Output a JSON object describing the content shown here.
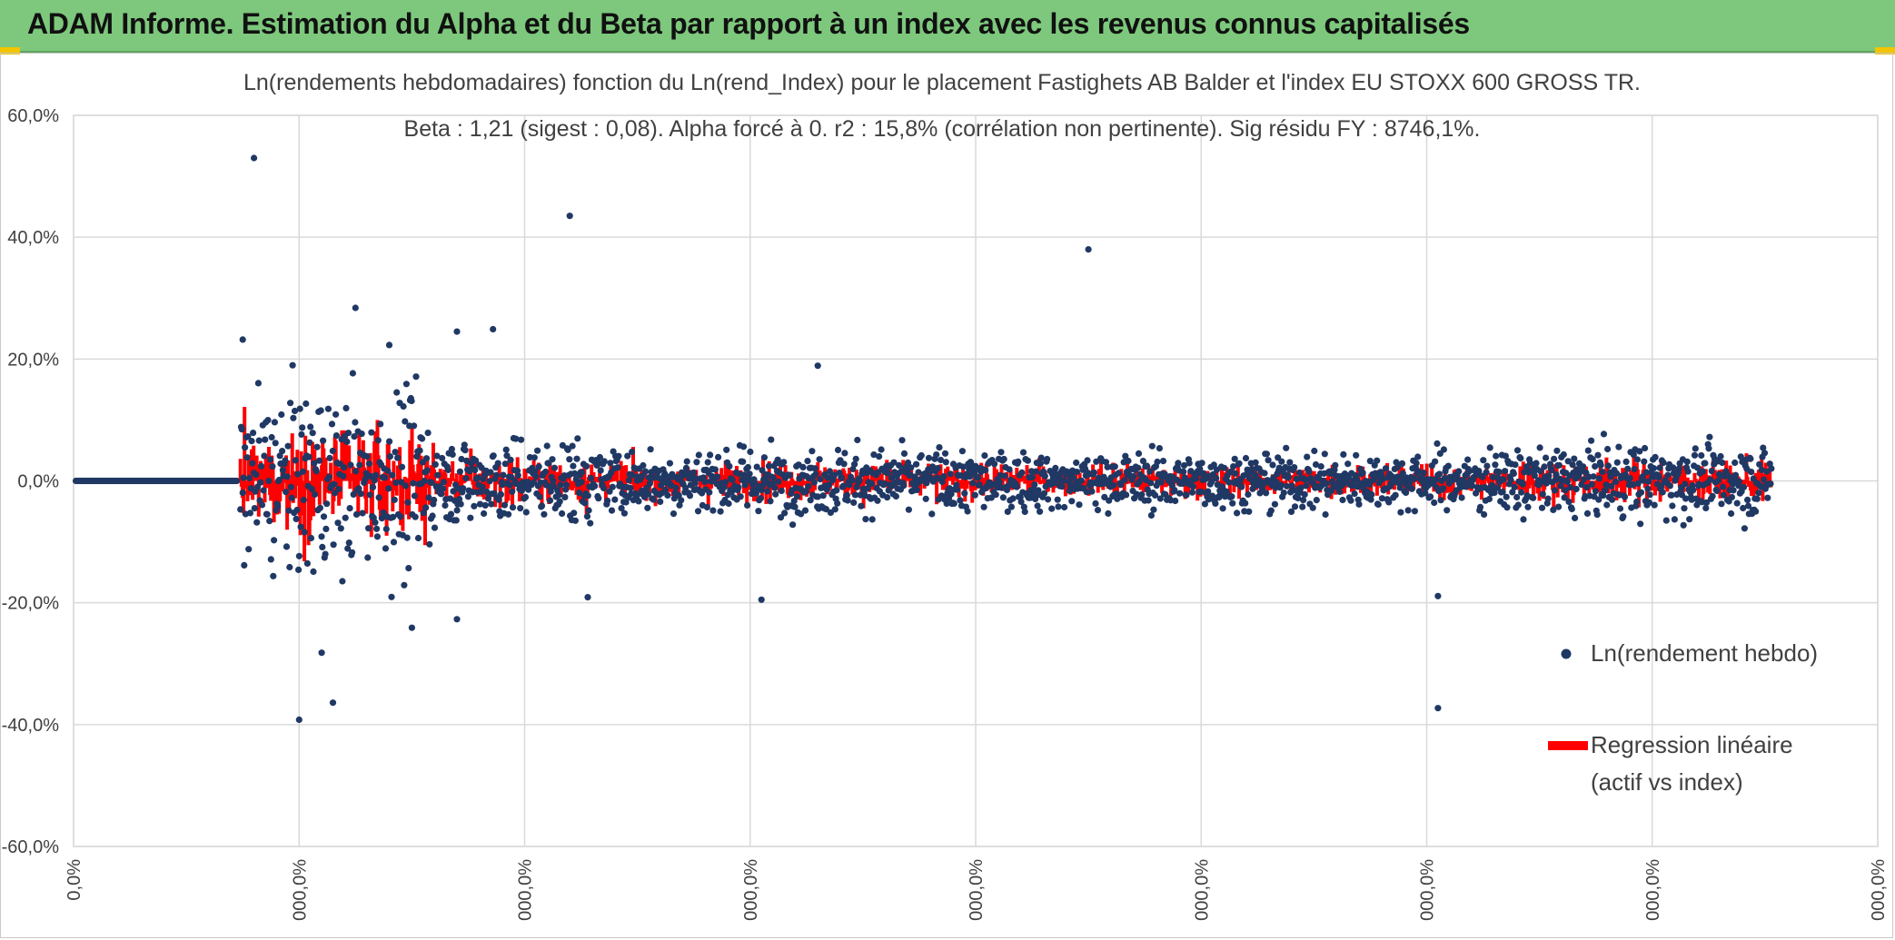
{
  "banner": {
    "title": "ADAM Informe. Estimation du Alpha et du Beta par rapport à un index avec les revenus connus capitalisés",
    "color": "#7dc87c"
  },
  "chart_data": {
    "type": "scatter",
    "title": "Ln(rendements hebdomadaires) fonction du Ln(rend_Index) pour le placement Fastighets AB Balder et l'index EU STOXX 600 GROSS TR.",
    "subtitle": "Beta : 1,21 (sigest : 0,08). Alpha forcé à 0. r2 : 15,8% (corrélation non pertinente). Sig résidu FY : 8746,1%.",
    "xlabel": "",
    "ylabel": "",
    "ylim": [
      -60,
      60
    ],
    "y_ticks": [
      -60,
      -40,
      -20,
      0,
      20,
      40,
      60
    ],
    "y_tick_labels": [
      "-60,0%",
      "-40,0%",
      "-20,0%",
      "0,0%",
      "20,0%",
      "40,0%",
      "60,0%"
    ],
    "x_ticks": [
      0,
      1,
      2,
      3,
      4,
      5,
      6,
      7,
      8
    ],
    "x_tick_labels": [
      "0,0%",
      "000,0%",
      "000,0%",
      "000,0%",
      "000,0%",
      "000,0%",
      "000,0%",
      "000,0%",
      "000,0%"
    ],
    "xlim": [
      0,
      8
    ],
    "grid": true,
    "legend_position": "right",
    "series": [
      {
        "name": "Ln(rendement hebdo)",
        "kind": "points",
        "color": "#203864",
        "notable_points": [
          {
            "x": 0.8,
            "y": 53
          },
          {
            "x": 2.2,
            "y": 43.5
          },
          {
            "x": 4.5,
            "y": 38
          },
          {
            "x": 1.25,
            "y": 28.4
          },
          {
            "x": 0.75,
            "y": 23.2
          },
          {
            "x": 1.4,
            "y": 22.3
          },
          {
            "x": 1.7,
            "y": 24.5
          },
          {
            "x": 1.86,
            "y": 24.9
          },
          {
            "x": 3.3,
            "y": 18.9
          },
          {
            "x": 1.0,
            "y": -39.2
          },
          {
            "x": 1.15,
            "y": -36.4
          },
          {
            "x": 6.05,
            "y": -37.3
          },
          {
            "x": 1.1,
            "y": -28.2
          },
          {
            "x": 1.5,
            "y": -24.1
          },
          {
            "x": 1.7,
            "y": -22.7
          },
          {
            "x": 2.28,
            "y": -19.1
          },
          {
            "x": 3.05,
            "y": -19.5
          },
          {
            "x": 6.05,
            "y": -18.9
          }
        ]
      },
      {
        "name": "Regression linéaire (actif vs index)",
        "kind": "line",
        "color": "#ff0000"
      }
    ],
    "legend": [
      {
        "label": "Ln(rendement hebdo)",
        "marker": "dot",
        "color": "#203864"
      },
      {
        "label_line1": "Regression linéaire",
        "label_line2": "(actif vs index)",
        "marker": "line",
        "color": "#ff0000"
      }
    ]
  }
}
